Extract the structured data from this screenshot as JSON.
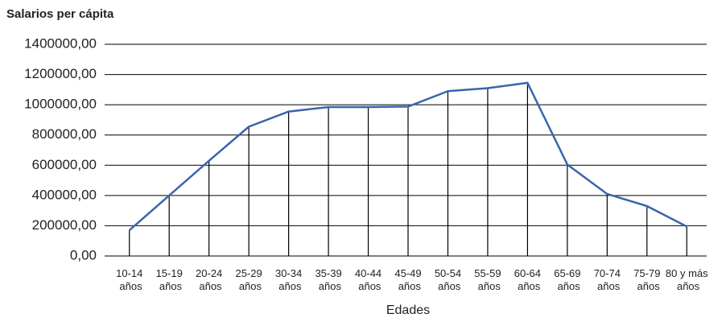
{
  "chart_data": {
    "type": "line",
    "title": "Salarios per cápita",
    "x_label": "Edades",
    "categories": [
      "10-14 años",
      "15-19 años",
      "20-24 años",
      "25-29 años",
      "30-34 años",
      "35-39 años",
      "40-44 años",
      "45-49 años",
      "50-54 años",
      "55-59 años",
      "60-64 años",
      "65-69 años",
      "70-74 años",
      "75-79 años",
      "80 y más años"
    ],
    "values": [
      170000,
      400000,
      630000,
      855000,
      955000,
      985000,
      985000,
      988000,
      1090000,
      1110000,
      1145000,
      605000,
      410000,
      330000,
      195000
    ],
    "color": "#3a65ad",
    "drop_lines": true,
    "ylim": [
      0,
      1400000
    ],
    "yticks": [
      {
        "value": 0,
        "label": "0,00"
      },
      {
        "value": 200000,
        "label": "200000,00"
      },
      {
        "value": 400000,
        "label": "400000,00"
      },
      {
        "value": 600000,
        "label": "600000,00"
      },
      {
        "value": 800000,
        "label": "800000,00"
      },
      {
        "value": 1000000,
        "label": "1000000,00"
      },
      {
        "value": 1200000,
        "label": "1200000,00"
      },
      {
        "value": 1400000,
        "label": "1400000,00"
      }
    ],
    "grid": true
  }
}
